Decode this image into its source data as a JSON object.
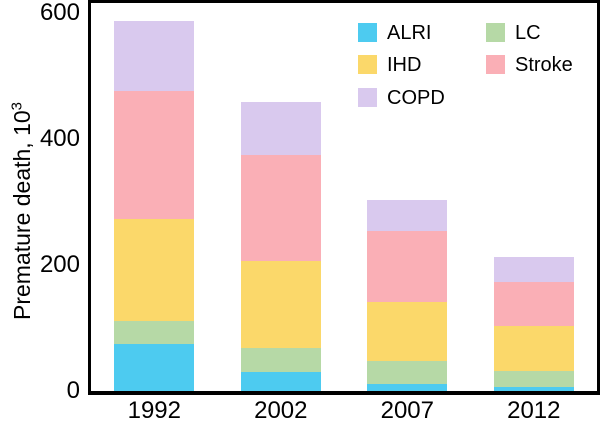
{
  "chart_data": {
    "type": "bar",
    "stacked": true,
    "title": "",
    "xlabel": "",
    "ylabel": "Premature death, 10³",
    "ylabel_base": "Premature death, 10",
    "ylabel_exponent": "3",
    "categories": [
      "1992",
      "2002",
      "2007",
      "2012"
    ],
    "series": [
      {
        "name": "ALRI",
        "color": "#4DCBF0",
        "values": [
          74,
          30,
          11,
          6
        ]
      },
      {
        "name": "LC",
        "color": "#B6D9A6",
        "values": [
          37,
          39,
          37,
          26
        ]
      },
      {
        "name": "IHD",
        "color": "#FBD86A",
        "values": [
          161,
          137,
          93,
          71
        ]
      },
      {
        "name": "Stroke",
        "color": "#FAAFB6",
        "values": [
          203,
          168,
          112,
          70
        ]
      },
      {
        "name": "COPD",
        "color": "#D9C9EE",
        "values": [
          112,
          85,
          50,
          40
        ]
      }
    ],
    "stack_order_bottom_to_top": [
      "ALRI",
      "LC",
      "IHD",
      "Stroke",
      "COPD"
    ],
    "totals": [
      587,
      459,
      303,
      213
    ],
    "yticks": [
      0,
      200,
      400,
      600
    ],
    "ylim": [
      0,
      615
    ],
    "grid": false,
    "legend_position": "upper-right-inside",
    "legend_columns": [
      [
        "ALRI",
        "IHD",
        "COPD"
      ],
      [
        "LC",
        "Stroke"
      ]
    ],
    "axis_color": "#000000",
    "background_color": "#ffffff"
  }
}
